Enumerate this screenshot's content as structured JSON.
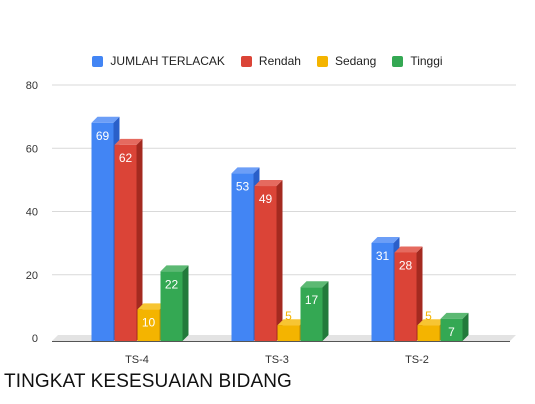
{
  "chart_data": {
    "type": "bar",
    "title": "TINGKAT KESESUAIAN BIDANG",
    "categories": [
      "TS-4",
      "TS-3",
      "TS-2"
    ],
    "series": [
      {
        "name": "JUMLAH TERLACAK",
        "color": "#4285f4",
        "side_color": "#2a5fc9",
        "top_color": "#6c9ef7",
        "values": [
          69,
          53,
          31
        ]
      },
      {
        "name": "Rendah",
        "color": "#db4437",
        "side_color": "#a42a20",
        "top_color": "#e56a5f",
        "values": [
          62,
          49,
          28
        ]
      },
      {
        "name": "Sedang",
        "color": "#f4b400",
        "side_color": "#c18b00",
        "top_color": "#f7c533",
        "values": [
          10,
          5,
          5
        ]
      },
      {
        "name": "Tinggi",
        "color": "#34a853",
        "side_color": "#227a3b",
        "top_color": "#5cb973",
        "values": [
          22,
          17,
          7
        ]
      }
    ],
    "ylim": [
      0,
      80
    ],
    "yticks": [
      0,
      20,
      40,
      60,
      80
    ],
    "grid": true,
    "legend_position": "top",
    "label_colors": {
      "inside": "#ffffff",
      "outside": "#f4b400"
    }
  }
}
